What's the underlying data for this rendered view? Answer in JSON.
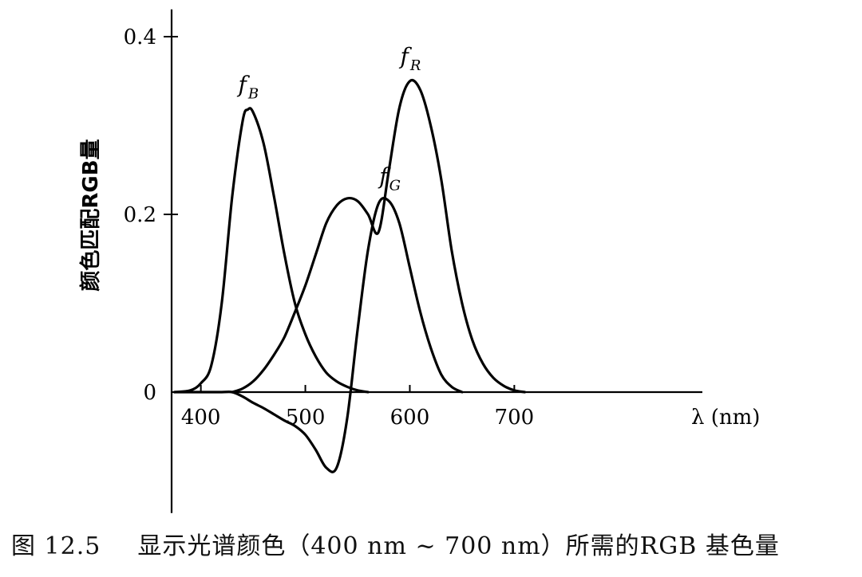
{
  "chart_data": {
    "type": "line",
    "xlabel": "λ (nm)",
    "ylabel": "颜色匹配RGB量",
    "xlim": [
      372,
      880
    ],
    "ylim": [
      -0.12,
      0.42
    ],
    "x_ticks": [
      400,
      500,
      600,
      700
    ],
    "y_ticks": [
      0,
      0.2,
      0.4
    ],
    "y_tick_labels": [
      "0",
      "0.2",
      "0.4"
    ],
    "grid": false,
    "series": [
      {
        "name": "f_B",
        "label_main": "f",
        "label_sub": "B",
        "x": [
          375,
          390,
          400,
          410,
          420,
          430,
          440,
          445,
          450,
          460,
          470,
          480,
          490,
          500,
          510,
          520,
          530,
          540,
          550,
          560
        ],
        "y": [
          0,
          0.002,
          0.01,
          0.03,
          0.1,
          0.22,
          0.305,
          0.318,
          0.315,
          0.28,
          0.22,
          0.155,
          0.1,
          0.065,
          0.04,
          0.022,
          0.012,
          0.006,
          0.002,
          0
        ]
      },
      {
        "name": "f_G",
        "label_main": "f",
        "label_sub": "G",
        "x": [
          375,
          400,
          420,
          430,
          440,
          450,
          460,
          470,
          480,
          490,
          500,
          510,
          520,
          530,
          540,
          550,
          560,
          570,
          580,
          590,
          600,
          610,
          620,
          630,
          640,
          650
        ],
        "y": [
          0,
          0,
          0,
          0,
          -0.005,
          -0.012,
          -0.018,
          -0.025,
          -0.032,
          -0.038,
          -0.048,
          -0.065,
          -0.085,
          -0.085,
          -0.03,
          0.07,
          0.16,
          0.212,
          0.215,
          0.19,
          0.14,
          0.09,
          0.05,
          0.02,
          0.006,
          0
        ]
      },
      {
        "name": "f_R",
        "label_main": "f",
        "label_sub": "R",
        "x": [
          430,
          440,
          450,
          460,
          470,
          480,
          490,
          500,
          510,
          520,
          530,
          540,
          550,
          560,
          570,
          580,
          590,
          600,
          610,
          620,
          630,
          640,
          650,
          660,
          670,
          680,
          690,
          700,
          710
        ],
        "y": [
          0,
          0.004,
          0.012,
          0.025,
          0.042,
          0.062,
          0.09,
          0.12,
          0.155,
          0.19,
          0.21,
          0.218,
          0.215,
          0.2,
          0.18,
          0.25,
          0.32,
          0.35,
          0.34,
          0.3,
          0.24,
          0.16,
          0.1,
          0.058,
          0.032,
          0.016,
          0.007,
          0.002,
          0
        ]
      }
    ]
  },
  "caption": {
    "number": "图 12.5",
    "text": "显示光谱颜色（400 nm ~ 700 nm）所需的RGB 基色量"
  }
}
